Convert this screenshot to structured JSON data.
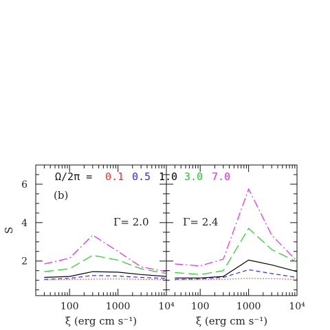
{
  "chart_data": [
    {
      "type": "line",
      "panel_label": "(b)",
      "annotation": "Γ= 2.0",
      "xscale": "log",
      "xlim": [
        20,
        10000
      ],
      "ylim": [
        0.2,
        7
      ],
      "x": [
        30,
        100,
        300,
        1000,
        3000,
        10000
      ],
      "xlabel": "ξ (erg cm s⁻¹)",
      "ylabel": "S",
      "xticks": [
        "100",
        "1000",
        "10⁴"
      ],
      "yticks": [
        "2",
        "4",
        "6"
      ],
      "legend": {
        "prefix": "Ω/2π  =",
        "entries": [
          "0.1",
          "0.5",
          "1.0",
          "3.0",
          "7.0"
        ]
      },
      "series": [
        {
          "name": "0.1",
          "color": "#ff2a2a",
          "style": "dotted",
          "values": [
            1.02,
            1.04,
            1.06,
            1.07,
            1.05,
            1.03
          ]
        },
        {
          "name": "0.5",
          "color": "#2a2aff",
          "style": "dashed",
          "values": [
            1.05,
            1.1,
            1.25,
            1.22,
            1.15,
            1.1
          ]
        },
        {
          "name": "1.0",
          "color": "#000000",
          "style": "solid",
          "values": [
            1.15,
            1.2,
            1.45,
            1.42,
            1.3,
            1.2
          ]
        },
        {
          "name": "3.0",
          "color": "#22cc22",
          "style": "longdash",
          "values": [
            1.45,
            1.6,
            2.3,
            2.05,
            1.6,
            1.35
          ]
        },
        {
          "name": "7.0",
          "color": "#ee22ee",
          "style": "dashdot",
          "values": [
            1.85,
            2.15,
            3.35,
            2.5,
            1.7,
            1.45
          ]
        }
      ]
    },
    {
      "type": "line",
      "annotation": "Γ= 2.4",
      "xscale": "log",
      "xlim": [
        20,
        10000
      ],
      "ylim": [
        0.2,
        7
      ],
      "x": [
        30,
        100,
        300,
        1000,
        3000,
        10000
      ],
      "xlabel": "ξ (erg cm s⁻¹)",
      "xticks": [
        "100",
        "1000",
        "10⁴"
      ],
      "series": [
        {
          "name": "0.1",
          "color": "#ff2a2a",
          "style": "dotted",
          "values": [
            1.02,
            1.03,
            1.05,
            1.1,
            1.08,
            1.05
          ]
        },
        {
          "name": "0.5",
          "color": "#2a2aff",
          "style": "dashed",
          "values": [
            1.05,
            1.07,
            1.15,
            1.55,
            1.35,
            1.15
          ]
        },
        {
          "name": "1.0",
          "color": "#000000",
          "style": "solid",
          "values": [
            1.12,
            1.12,
            1.2,
            2.05,
            1.8,
            1.45
          ]
        },
        {
          "name": "3.0",
          "color": "#22cc22",
          "style": "longdash",
          "values": [
            1.4,
            1.3,
            1.5,
            3.7,
            2.6,
            1.95
          ]
        },
        {
          "name": "7.0",
          "color": "#ee22ee",
          "style": "dashdot",
          "values": [
            1.85,
            1.75,
            2.1,
            5.75,
            3.35,
            2.0
          ]
        }
      ]
    }
  ]
}
